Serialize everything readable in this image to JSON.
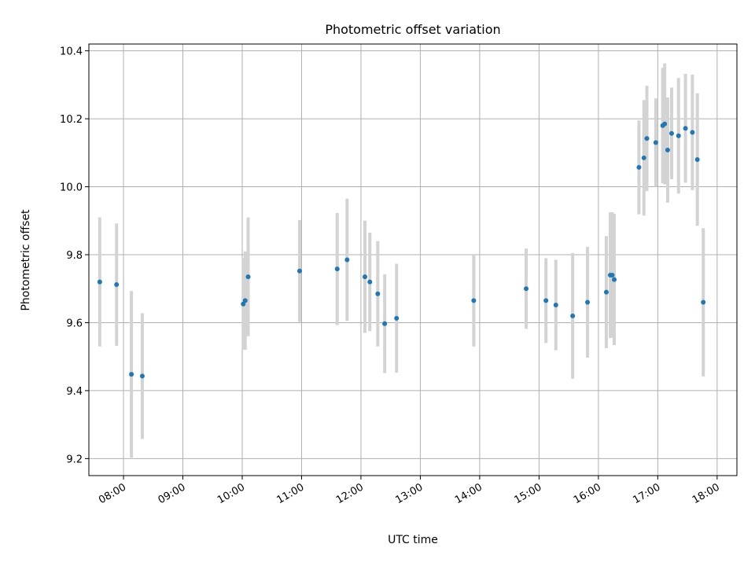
{
  "chart_data": {
    "type": "scatter",
    "title": "Photometric offset variation",
    "xlabel": "UTC time",
    "ylabel": "Photometric offset",
    "xlim": [
      "07:25",
      "18:20"
    ],
    "ylim": [
      9.15,
      10.42
    ],
    "x_ticks": [
      "08:00",
      "09:00",
      "10:00",
      "11:00",
      "12:00",
      "13:00",
      "14:00",
      "15:00",
      "16:00",
      "17:00",
      "18:00"
    ],
    "y_ticks": [
      "9.2",
      "9.4",
      "9.6",
      "9.8",
      "10.0",
      "10.2",
      "10.4"
    ],
    "grid": true,
    "colors": {
      "point": "#1f77b4",
      "errorbar": "#d3d3d3",
      "grid": "#b0b0b0"
    },
    "points": [
      {
        "t": "07:36",
        "y": 9.72,
        "err": 0.19
      },
      {
        "t": "07:53",
        "y": 9.712,
        "err": 0.18
      },
      {
        "t": "08:08",
        "y": 9.448,
        "err": 0.245
      },
      {
        "t": "08:19",
        "y": 9.443,
        "err": 0.185
      },
      {
        "t": "10:01",
        "y": 9.655,
        "err": 0.135
      },
      {
        "t": "10:03",
        "y": 9.665,
        "err": 0.145
      },
      {
        "t": "10:06",
        "y": 9.735,
        "err": 0.175
      },
      {
        "t": "10:58",
        "y": 9.752,
        "err": 0.15
      },
      {
        "t": "11:36",
        "y": 9.758,
        "err": 0.165
      },
      {
        "t": "11:46",
        "y": 9.785,
        "err": 0.18
      },
      {
        "t": "12:04",
        "y": 9.735,
        "err": 0.165
      },
      {
        "t": "12:09",
        "y": 9.72,
        "err": 0.145
      },
      {
        "t": "12:17",
        "y": 9.685,
        "err": 0.155
      },
      {
        "t": "12:24",
        "y": 9.597,
        "err": 0.145
      },
      {
        "t": "12:36",
        "y": 9.613,
        "err": 0.16
      },
      {
        "t": "13:54",
        "y": 9.665,
        "err": 0.135
      },
      {
        "t": "14:47",
        "y": 9.7,
        "err": 0.118
      },
      {
        "t": "15:07",
        "y": 9.665,
        "err": 0.125
      },
      {
        "t": "15:17",
        "y": 9.652,
        "err": 0.133
      },
      {
        "t": "15:34",
        "y": 9.62,
        "err": 0.185
      },
      {
        "t": "15:49",
        "y": 9.66,
        "err": 0.163
      },
      {
        "t": "16:08",
        "y": 9.69,
        "err": 0.165
      },
      {
        "t": "16:12",
        "y": 9.74,
        "err": 0.185
      },
      {
        "t": "16:14",
        "y": 9.74,
        "err": 0.185
      },
      {
        "t": "16:16",
        "y": 9.727,
        "err": 0.193
      },
      {
        "t": "16:41",
        "y": 10.057,
        "err": 0.138
      },
      {
        "t": "16:46",
        "y": 10.085,
        "err": 0.17
      },
      {
        "t": "16:49",
        "y": 10.142,
        "err": 0.155
      },
      {
        "t": "16:58",
        "y": 10.13,
        "err": 0.13
      },
      {
        "t": "17:05",
        "y": 10.18,
        "err": 0.17
      },
      {
        "t": "17:07",
        "y": 10.185,
        "err": 0.178
      },
      {
        "t": "17:10",
        "y": 10.108,
        "err": 0.155
      },
      {
        "t": "17:14",
        "y": 10.157,
        "err": 0.135
      },
      {
        "t": "17:21",
        "y": 10.15,
        "err": 0.17
      },
      {
        "t": "17:28",
        "y": 10.172,
        "err": 0.16
      },
      {
        "t": "17:35",
        "y": 10.16,
        "err": 0.17
      },
      {
        "t": "17:40",
        "y": 10.08,
        "err": 0.195
      },
      {
        "t": "17:46",
        "y": 9.66,
        "err": 0.218
      }
    ]
  }
}
